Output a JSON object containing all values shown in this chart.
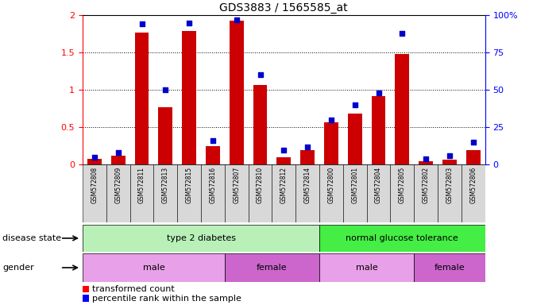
{
  "title": "GDS3883 / 1565585_at",
  "samples": [
    "GSM572808",
    "GSM572809",
    "GSM572811",
    "GSM572813",
    "GSM572815",
    "GSM572816",
    "GSM572807",
    "GSM572810",
    "GSM572812",
    "GSM572814",
    "GSM572800",
    "GSM572801",
    "GSM572804",
    "GSM572805",
    "GSM572802",
    "GSM572803",
    "GSM572806"
  ],
  "transformed_count": [
    0.08,
    0.12,
    1.77,
    0.77,
    1.79,
    0.25,
    1.93,
    1.07,
    0.1,
    0.2,
    0.57,
    0.68,
    0.92,
    1.48,
    0.05,
    0.07,
    0.2
  ],
  "percentile_rank": [
    5,
    8,
    94,
    50,
    95,
    16,
    97,
    60,
    10,
    12,
    30,
    40,
    48,
    88,
    4,
    6,
    15
  ],
  "ylim_left": [
    0,
    2
  ],
  "ylim_right": [
    0,
    100
  ],
  "yticks_left": [
    0,
    0.5,
    1.0,
    1.5,
    2.0
  ],
  "yticks_right": [
    0,
    25,
    50,
    75,
    100
  ],
  "bar_color": "#cc0000",
  "dot_color": "#0000cc",
  "disease_state_groups": [
    {
      "label": "type 2 diabetes",
      "start": 0,
      "end": 10,
      "color": "#b8f0b8"
    },
    {
      "label": "normal glucose tolerance",
      "start": 10,
      "end": 17,
      "color": "#44ee44"
    }
  ],
  "gender_groups": [
    {
      "label": "male",
      "start": 0,
      "end": 6,
      "color": "#e8a0e8"
    },
    {
      "label": "female",
      "start": 6,
      "end": 10,
      "color": "#cc66cc"
    },
    {
      "label": "male",
      "start": 10,
      "end": 14,
      "color": "#e8a0e8"
    },
    {
      "label": "female",
      "start": 14,
      "end": 17,
      "color": "#cc66cc"
    }
  ],
  "legend_bar_label": "transformed count",
  "legend_dot_label": "percentile rank within the sample",
  "disease_state_label": "disease state",
  "gender_label": "gender",
  "background_color": "#ffffff"
}
